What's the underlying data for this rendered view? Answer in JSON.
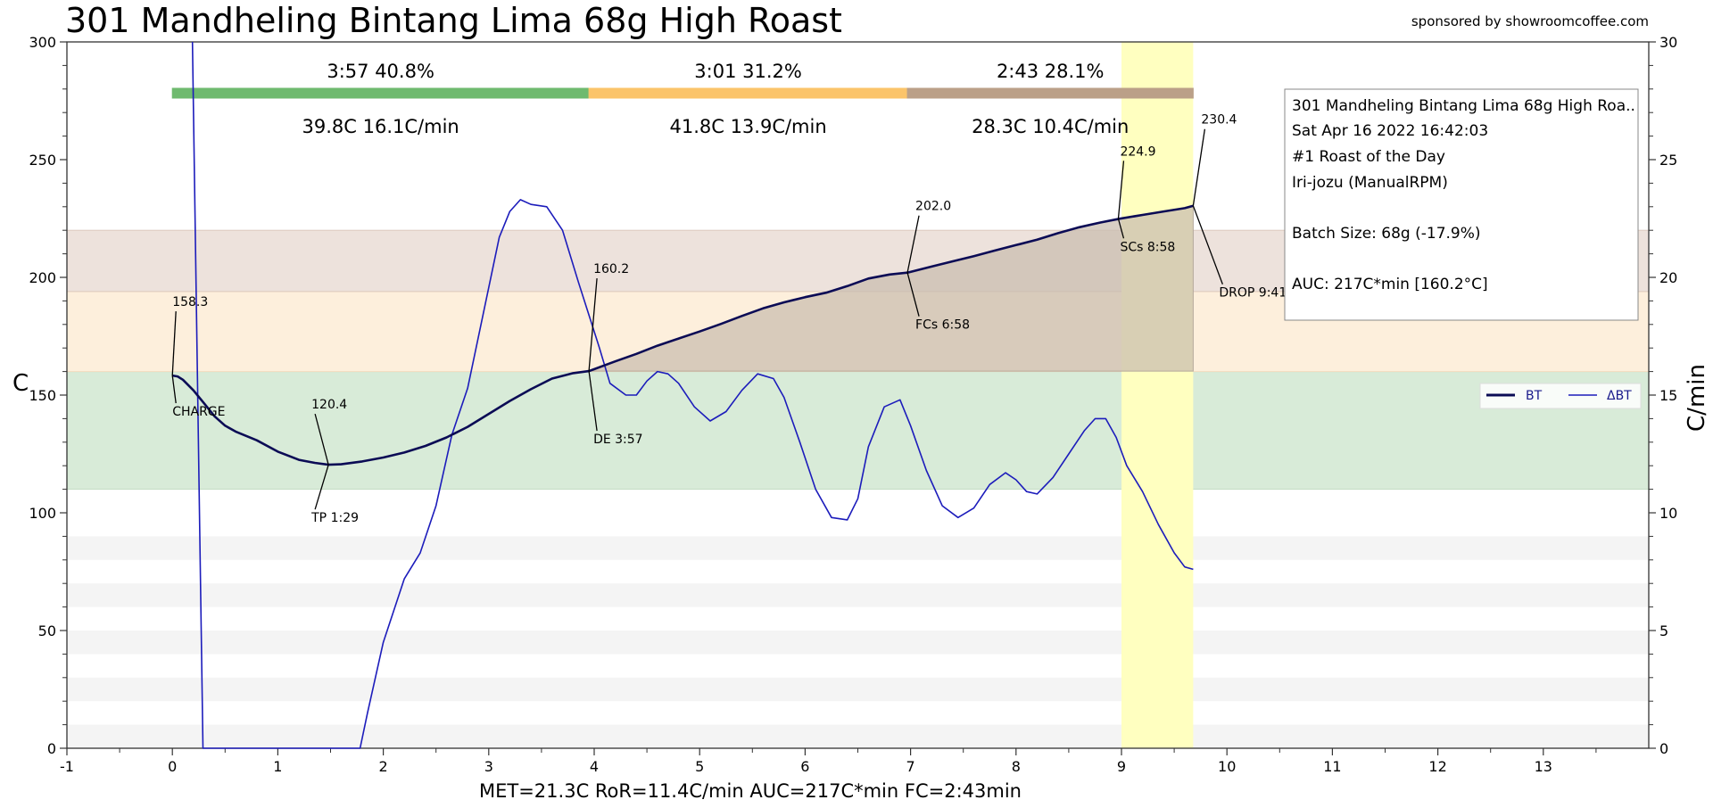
{
  "title": "301 Mandheling Bintang Lima 68g High Roast",
  "sponsor": "sponsored by showroomcoffee.com",
  "footer": "MET=21.3C   RoR=11.4C/min   AUC=217C*min   FC=2:43min",
  "colors": {
    "bt": "#0b0b55",
    "delta_bt": "#1c1cbb",
    "phase_dry": "#6fba6f",
    "phase_maillard": "#fbc46a",
    "phase_dev": "#bba088",
    "band_dry": "#d8ebd8",
    "band_maillard": "#fdefdc",
    "band_dev": "#ede2dc",
    "drop_highlight": "#ffffc0",
    "auc_fill": "#c9bdaf"
  },
  "phases": [
    {
      "name": "drying",
      "start": 0,
      "end": 3.95,
      "time_pct": "3:57  40.8%",
      "stats": "39.8C  16.1C/min"
    },
    {
      "name": "maillard",
      "start": 3.95,
      "end": 6.97,
      "time_pct": "3:01  31.2%",
      "stats": "41.8C  13.9C/min"
    },
    {
      "name": "development",
      "start": 6.97,
      "end": 9.68,
      "time_pct": "2:43  28.1%",
      "stats": "28.3C  10.4C/min"
    }
  ],
  "info_box": {
    "lines": [
      "301 Mandheling Bintang Lima 68g High Roa..",
      "Sat Apr 16 2022 16:42:03",
      "#1 Roast of the Day",
      "Iri-jozu (ManualRPM)",
      "",
      "Batch Size: 68g (-17.9%)",
      "",
      "AUC: 217C*min [160.2°C]"
    ]
  },
  "chart_data": {
    "type": "line",
    "xlabel": "",
    "ylabel": "C",
    "y2label": "C/min",
    "xlim": [
      -1,
      14
    ],
    "ylim": [
      0,
      300
    ],
    "y2lim": [
      0,
      30
    ],
    "xticks": [
      -1,
      0,
      1,
      2,
      3,
      4,
      5,
      6,
      7,
      8,
      9,
      10,
      11,
      12,
      13
    ],
    "yticks": [
      0,
      50,
      100,
      150,
      200,
      250,
      300
    ],
    "y2ticks": [
      0,
      5,
      10,
      15,
      20,
      25,
      30
    ],
    "legend_position": "right-middle",
    "temperature_bands": [
      {
        "from": 110,
        "to": 160,
        "phase": "drying"
      },
      {
        "from": 160,
        "to": 194,
        "phase": "maillard"
      },
      {
        "from": 194,
        "to": 220,
        "phase": "development"
      }
    ],
    "drop_window": {
      "from": 9.0,
      "to": 9.68
    },
    "series": [
      {
        "name": "BT",
        "axis": "left",
        "x": [
          0,
          0.05,
          0.1,
          0.2,
          0.3,
          0.4,
          0.5,
          0.6,
          0.8,
          1.0,
          1.2,
          1.35,
          1.48,
          1.6,
          1.8,
          2.0,
          2.2,
          2.4,
          2.6,
          2.8,
          3.0,
          3.2,
          3.4,
          3.6,
          3.8,
          3.95,
          4.2,
          4.4,
          4.6,
          4.8,
          5.0,
          5.2,
          5.4,
          5.6,
          5.8,
          6.0,
          6.2,
          6.4,
          6.6,
          6.8,
          6.97,
          7.2,
          7.4,
          7.6,
          7.8,
          8.0,
          8.2,
          8.4,
          8.6,
          8.8,
          8.98,
          9.2,
          9.4,
          9.6,
          9.68
        ],
        "y": [
          158.3,
          157.9,
          156.5,
          152.0,
          146.5,
          141.0,
          137.0,
          134.5,
          130.8,
          126.0,
          122.5,
          121.2,
          120.4,
          120.6,
          121.8,
          123.5,
          125.6,
          128.4,
          132.0,
          136.5,
          142.0,
          147.5,
          152.5,
          157.0,
          159.3,
          160.2,
          164.3,
          167.5,
          171.0,
          174.0,
          177.0,
          180.2,
          183.6,
          186.8,
          189.4,
          191.6,
          193.5,
          196.3,
          199.5,
          201.2,
          202.0,
          204.6,
          206.8,
          209.0,
          211.4,
          213.7,
          216.0,
          218.8,
          221.3,
          223.3,
          224.9,
          226.5,
          228.0,
          229.4,
          230.4
        ]
      },
      {
        "name": "ΔBT",
        "axis": "right",
        "x": [
          0.19,
          0.29,
          1.78,
          1.85,
          2.0,
          2.2,
          2.35,
          2.5,
          2.65,
          2.8,
          2.95,
          3.1,
          3.2,
          3.3,
          3.4,
          3.55,
          3.7,
          3.85,
          3.95,
          4.05,
          4.15,
          4.3,
          4.4,
          4.5,
          4.6,
          4.7,
          4.8,
          4.95,
          5.1,
          5.25,
          5.4,
          5.55,
          5.7,
          5.8,
          5.95,
          6.1,
          6.25,
          6.4,
          6.5,
          6.6,
          6.75,
          6.9,
          7.0,
          7.15,
          7.3,
          7.45,
          7.6,
          7.75,
          7.9,
          8.0,
          8.1,
          8.2,
          8.35,
          8.5,
          8.65,
          8.75,
          8.85,
          8.95,
          9.05,
          9.2,
          9.35,
          9.5,
          9.6,
          9.68
        ],
        "y": [
          30.0,
          0,
          0,
          1.5,
          4.5,
          7.2,
          8.3,
          10.3,
          13.3,
          15.3,
          18.5,
          21.7,
          22.8,
          23.3,
          23.1,
          23.0,
          22.0,
          19.8,
          18.4,
          17.0,
          15.5,
          15.0,
          15.0,
          15.6,
          16.0,
          15.9,
          15.5,
          14.5,
          13.9,
          14.3,
          15.2,
          15.9,
          15.7,
          14.9,
          13.0,
          11.0,
          9.8,
          9.7,
          10.6,
          12.8,
          14.5,
          14.8,
          13.7,
          11.8,
          10.3,
          9.8,
          10.2,
          11.2,
          11.7,
          11.4,
          10.9,
          10.8,
          11.5,
          12.5,
          13.5,
          14.0,
          14.0,
          13.2,
          12.0,
          10.9,
          9.5,
          8.3,
          7.7,
          7.6
        ]
      }
    ],
    "annotations": [
      {
        "value": "158.3",
        "event": "CHARGE",
        "x": 0.0,
        "y": 158.3
      },
      {
        "value": "120.4",
        "event": "TP 1:29",
        "x": 1.48,
        "y": 120.4
      },
      {
        "value": "160.2",
        "event": "DE 3:57",
        "x": 3.95,
        "y": 160.2
      },
      {
        "value": "202.0",
        "event": "FCs 6:58",
        "x": 6.97,
        "y": 202.0
      },
      {
        "value": "224.9",
        "event": "SCs 8:58",
        "x": 8.97,
        "y": 224.9
      },
      {
        "value": "230.4",
        "event": "DROP 9:41",
        "x": 9.68,
        "y": 230.4
      }
    ]
  }
}
